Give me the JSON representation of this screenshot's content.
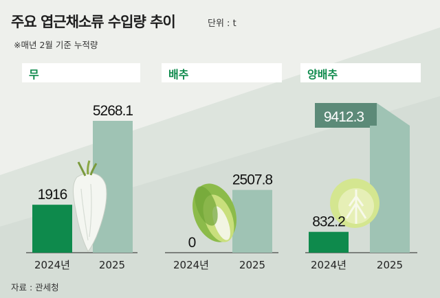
{
  "header": {
    "title": "주요 엽근채소류 수입량 추이",
    "unit": "단위 : t",
    "note": "※매년 2월 기준 누적량"
  },
  "footer": {
    "source": "자료 : 관세청"
  },
  "colors": {
    "bar_2024": "#0e8a4c",
    "bar_2025": "#9fc3b4",
    "bar_2025_highlight": "#5c8a78",
    "background": "#eef0ec"
  },
  "chart_data": [
    {
      "type": "bar",
      "title": "무",
      "categories": [
        "2024년",
        "2025"
      ],
      "values": [
        1916,
        5268.1
      ],
      "value_labels": [
        "1916",
        "5268.1"
      ],
      "icon": "radish-icon"
    },
    {
      "type": "bar",
      "title": "배추",
      "categories": [
        "2024년",
        "2025"
      ],
      "values": [
        0,
        2507.8
      ],
      "value_labels": [
        "0",
        "2507.8"
      ],
      "icon": "napa-cabbage-icon"
    },
    {
      "type": "bar",
      "title": "양배추",
      "categories": [
        "2024년",
        "2025"
      ],
      "values": [
        832.2,
        9412.3
      ],
      "value_labels": [
        "832.2",
        "9412.3"
      ],
      "icon": "cabbage-icon",
      "broken_axis": true
    }
  ]
}
